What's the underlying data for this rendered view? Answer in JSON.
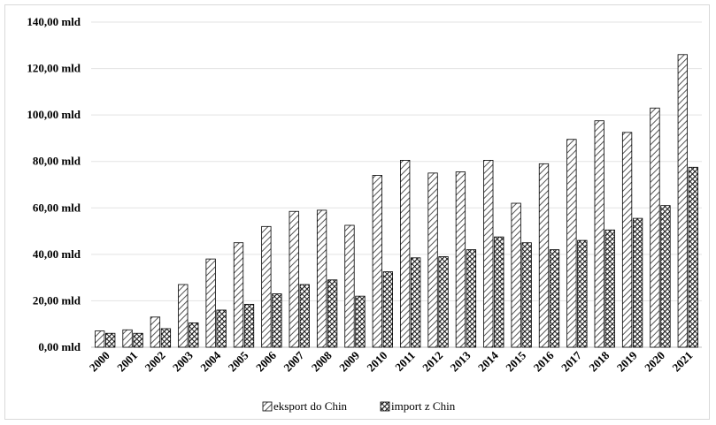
{
  "chart_data": {
    "type": "bar",
    "title": "",
    "xlabel": "",
    "ylabel": "",
    "categories": [
      "2000",
      "2001",
      "2002",
      "2003",
      "2004",
      "2005",
      "2006",
      "2007",
      "2008",
      "2009",
      "2010",
      "2011",
      "2012",
      "2013",
      "2014",
      "2015",
      "2016",
      "2017",
      "2018",
      "2019",
      "2020",
      "2021"
    ],
    "series": [
      {
        "name": "eksport do Chin",
        "values": [
          7,
          7.5,
          13,
          27,
          38,
          45,
          52,
          58.5,
          59,
          52.5,
          74,
          80.5,
          75,
          75.5,
          80.5,
          62,
          79,
          89.5,
          97.5,
          92.5,
          103,
          126
        ],
        "pattern": "hatch-light"
      },
      {
        "name": "import z Chin",
        "values": [
          6,
          6,
          8,
          10.5,
          16,
          18.5,
          23,
          27,
          29,
          22,
          32.5,
          38.5,
          39,
          42,
          47.5,
          45,
          42,
          46,
          50.5,
          55.5,
          61,
          77.5
        ],
        "pattern": "hatch-dense"
      }
    ],
    "ylim": [
      0,
      140
    ],
    "y_ticks": [
      "0,00 mld",
      "20,00 mld",
      "40,00 mld",
      "60,00 mld",
      "80,00 mld",
      "100,00 mld",
      "120,00 mld",
      "140,00 mld"
    ],
    "grid": true,
    "legend": "bottom"
  }
}
